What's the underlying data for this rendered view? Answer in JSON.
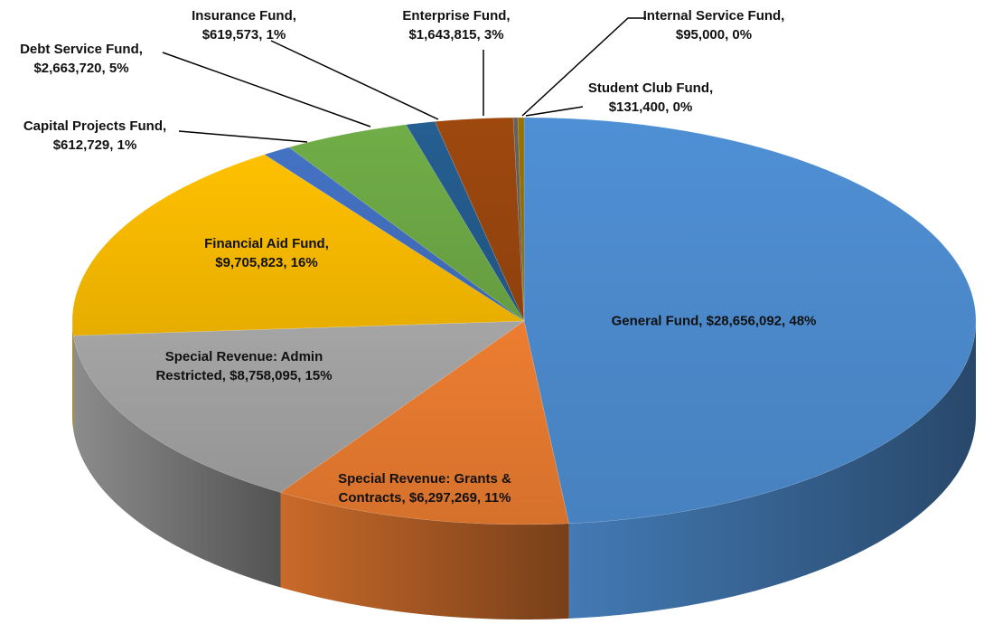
{
  "chart_data": {
    "type": "pie3d",
    "labels": [
      "General Fund, $28,656,092, 48%",
      "Special Revenue: Grants & Contracts, $6,297,269, 11%",
      "Special Revenue: Admin Restricted, $8,758,095, 15%",
      "Financial Aid Fund, $9,705,823, 16%",
      "Capital Projects Fund, $612,729, 1%",
      "Debt Service Fund, $2,663,720, 5%",
      "Insurance Fund, $619,573, 1%",
      "Enterprise Fund, $1,643,815, 3%",
      "Internal Service Fund, $95,000, 0%",
      "Student Club Fund, $131,400, 0%"
    ],
    "values": [
      28656092,
      6297269,
      8758095,
      9705823,
      612729,
      2663720,
      619573,
      1643815,
      95000,
      131400
    ],
    "colors": [
      "#4f8fd4",
      "#ed7d31",
      "#a5a5a5",
      "#ffc000",
      "#4472c4",
      "#70ad47",
      "#255e91",
      "#9e480e",
      "#636363",
      "#997300"
    ]
  }
}
